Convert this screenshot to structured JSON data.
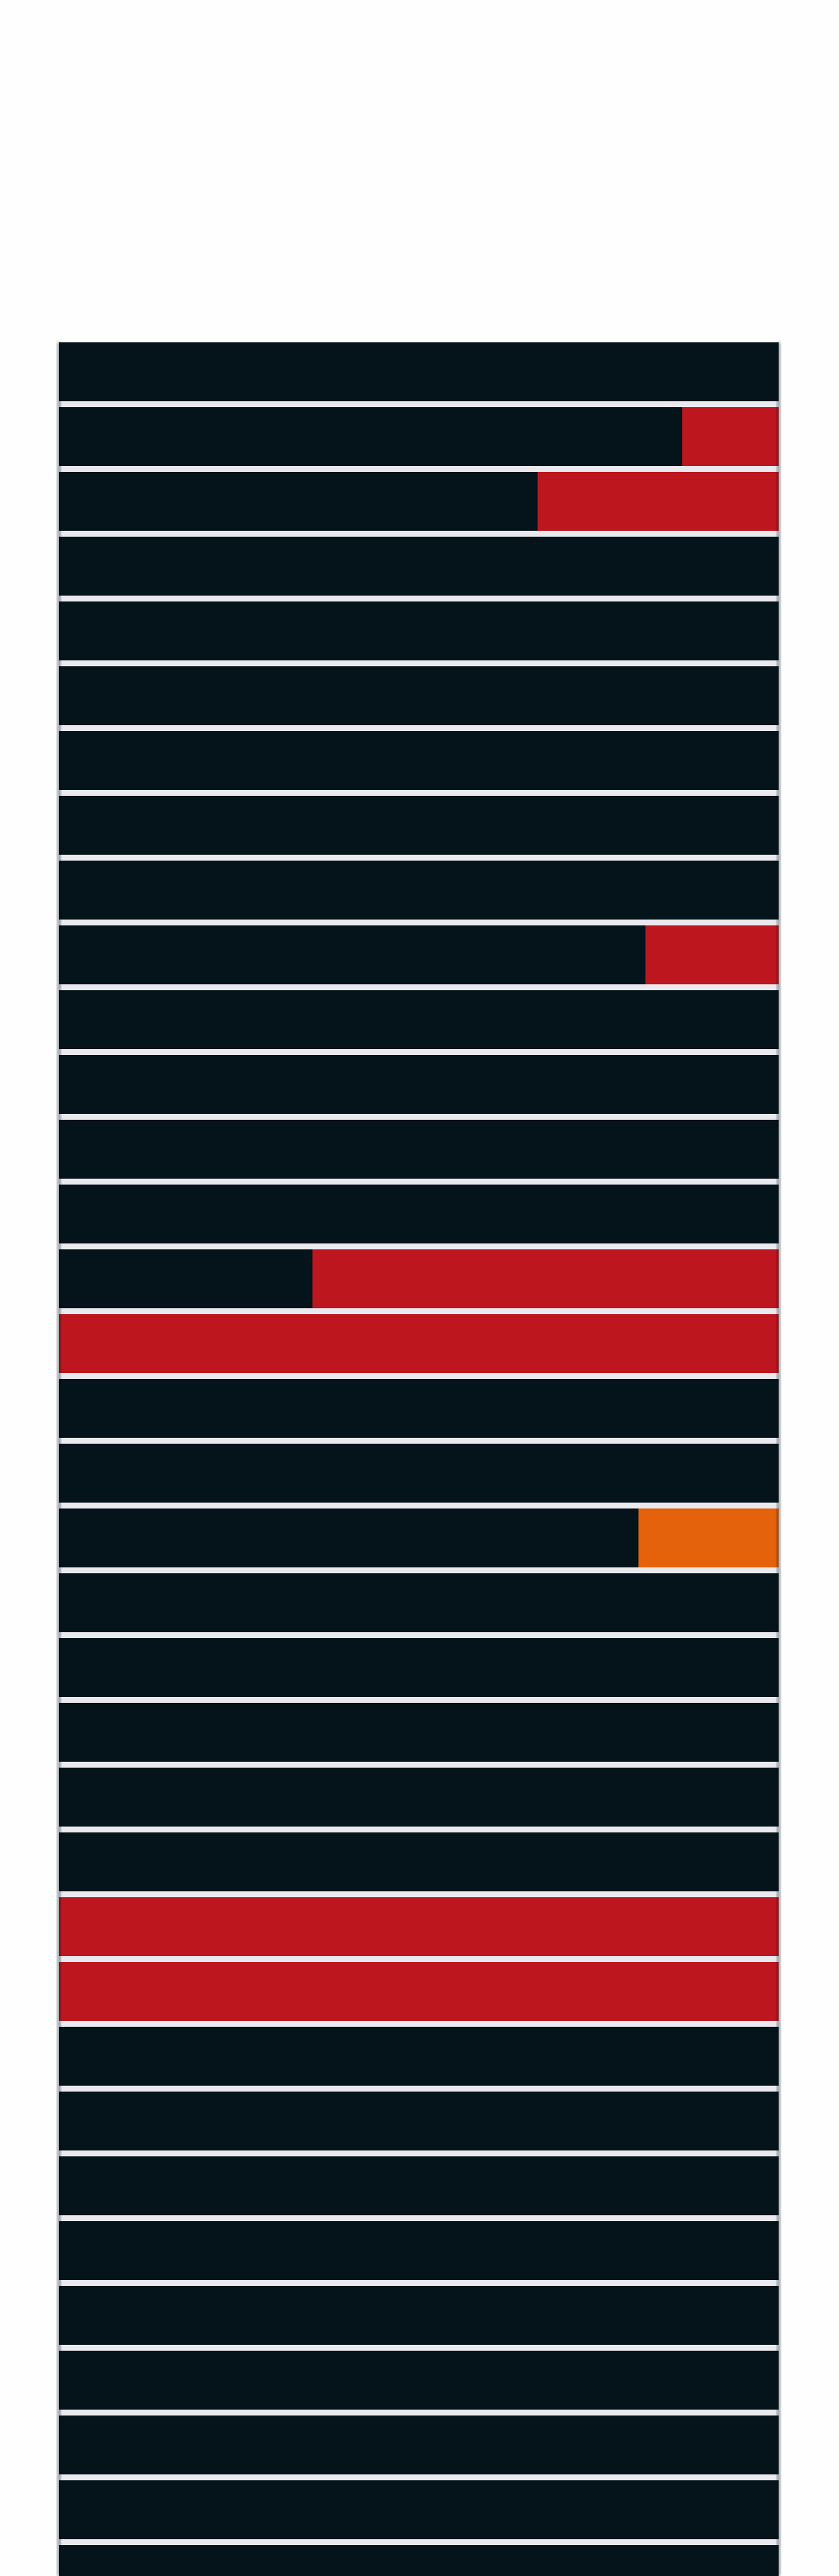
{
  "colors": {
    "background": "#fefefe",
    "base": "#05131b",
    "separator": "#e9e9ee",
    "red": "#bd161e",
    "orange": "#e3620b"
  },
  "chart_data": {
    "type": "bar",
    "orientation": "horizontal-stacked",
    "rows": 35,
    "xlim": [
      0,
      1
    ],
    "grid": false,
    "legend": "none",
    "series": [
      {
        "color": "red",
        "segments": [
          {
            "row": 1,
            "from": 0.866,
            "to": 1.0
          },
          {
            "row": 2,
            "from": 0.665,
            "to": 1.0
          },
          {
            "row": 9,
            "from": 0.815,
            "to": 1.0
          },
          {
            "row": 14,
            "from": 0.352,
            "to": 1.0
          },
          {
            "row": 15,
            "from": 0.0,
            "to": 1.0
          },
          {
            "row": 24,
            "from": 0.0,
            "to": 1.0
          },
          {
            "row": 25,
            "from": 0.0,
            "to": 1.0
          }
        ]
      },
      {
        "color": "orange",
        "segments": [
          {
            "row": 18,
            "from": 0.805,
            "to": 1.0
          }
        ]
      }
    ]
  }
}
